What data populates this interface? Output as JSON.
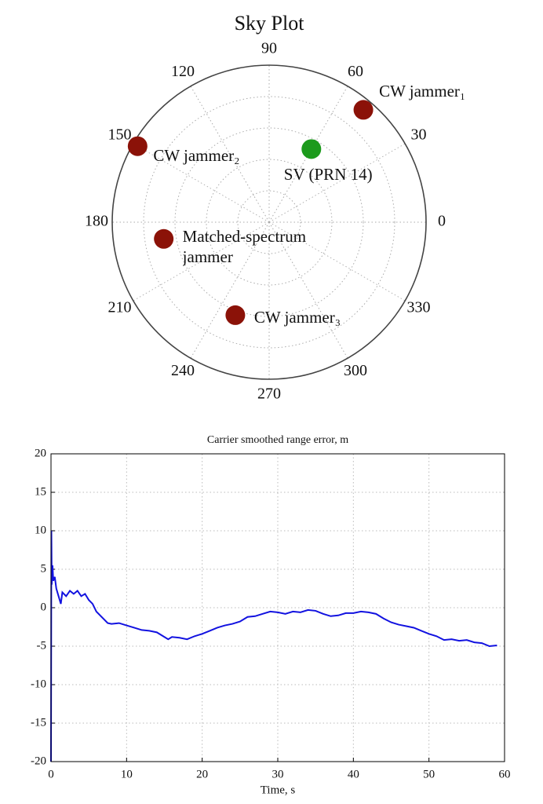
{
  "chart_data": [
    {
      "type": "polar",
      "title": "Sky Plot",
      "rlim": [
        0,
        5
      ],
      "rticks": [
        1,
        2,
        3,
        4,
        5
      ],
      "thetaticks": [
        0,
        30,
        60,
        90,
        120,
        150,
        180,
        210,
        240,
        270,
        300,
        330
      ],
      "grid": true,
      "series": [
        {
          "name": "CW jammer₁",
          "color": "#8b1208",
          "theta": 50,
          "r": 4.67
        },
        {
          "name": "CW jammer₂",
          "color": "#8b1208",
          "theta": 150,
          "r": 4.84
        },
        {
          "name": "SV (PRN 14)",
          "color": "#1c9a1c",
          "theta": 60,
          "r": 2.69
        },
        {
          "name": "Matched-spectrum jammer",
          "color": "#8b1208",
          "theta": 189,
          "r": 3.4
        },
        {
          "name": "CW jammer₃",
          "color": "#8b1208",
          "theta": 250,
          "r": 3.15
        }
      ]
    },
    {
      "type": "line",
      "title": "Carrier smoothed range error, m",
      "x_label": "Time, s",
      "xlim": [
        0,
        60
      ],
      "ylim": [
        -20,
        20
      ],
      "xticks": [
        0,
        10,
        20,
        30,
        40,
        50,
        60
      ],
      "yticks": [
        -20,
        -15,
        -10,
        -5,
        0,
        5,
        10,
        15,
        20
      ],
      "grid": true,
      "x": [
        0,
        0.05,
        0.1,
        0.2,
        0.3,
        0.5,
        0.7,
        1,
        1.3,
        1.5,
        2,
        2.5,
        3,
        3.5,
        4,
        4.5,
        5,
        5.5,
        6,
        6.5,
        7,
        7.5,
        8,
        9,
        10,
        11,
        12,
        13,
        14,
        15,
        15.5,
        16,
        17,
        18,
        19,
        20,
        21,
        22,
        23,
        24,
        25,
        26,
        27,
        28,
        29,
        30,
        31,
        32,
        33,
        34,
        35,
        36,
        37,
        38,
        39,
        40,
        41,
        42,
        43,
        44,
        45,
        46,
        47,
        48,
        49,
        50,
        51,
        52,
        53,
        54,
        55,
        56,
        57,
        58,
        59
      ],
      "series": [
        {
          "name": "range error",
          "color": "#1212e0",
          "values": [
            -20,
            10,
            3,
            5.5,
            3.5,
            4,
            2.5,
            1.5,
            0.5,
            2,
            1.5,
            2.2,
            1.8,
            2.2,
            1.5,
            1.8,
            1,
            0.5,
            -0.5,
            -1,
            -1.5,
            -2,
            -2.1,
            -2,
            -2.3,
            -2.6,
            -2.9,
            -3,
            -3.2,
            -3.8,
            -4.1,
            -3.8,
            -3.9,
            -4.1,
            -3.7,
            -3.4,
            -3,
            -2.6,
            -2.3,
            -2.1,
            -1.8,
            -1.2,
            -1.1,
            -0.8,
            -0.5,
            -0.6,
            -0.8,
            -0.5,
            -0.6,
            -0.3,
            -0.4,
            -0.8,
            -1.1,
            -1,
            -0.7,
            -0.7,
            -0.5,
            -0.6,
            -0.8,
            -1.4,
            -1.9,
            -2.2,
            -2.4,
            -2.6,
            -3,
            -3.4,
            -3.7,
            -4.2,
            -4.1,
            -4.3,
            -4.2,
            -4.5,
            -4.6,
            -5,
            -4.9
          ]
        }
      ]
    }
  ]
}
